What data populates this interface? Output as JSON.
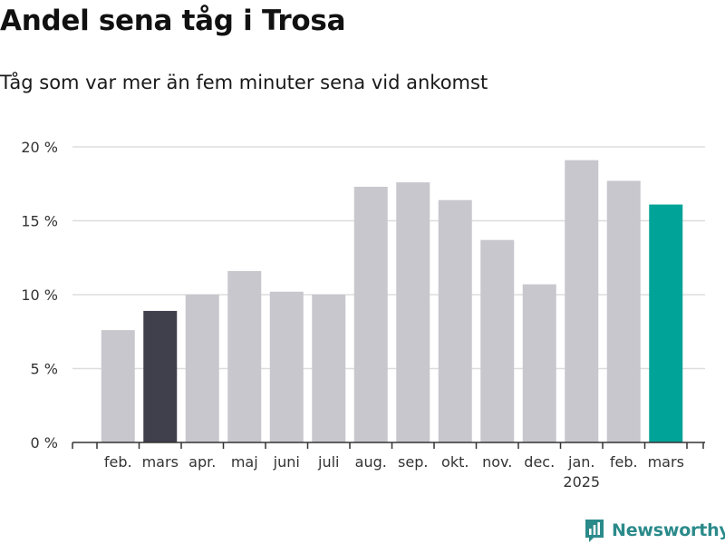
{
  "header": {
    "title": "Andel sena tåg i Trosa",
    "subtitle": "Tåg som var mer än fem minuter sena vid ankomst"
  },
  "brand": {
    "name": "Newsworthy",
    "icon": "newsworthy-logo-icon"
  },
  "colors": {
    "default_bar": "#c8c7cd",
    "highlight_previous": "#403f4c",
    "highlight_current": "#00a398",
    "grid": "#dddddd",
    "axis": "#333333",
    "brand": "#2b8a8a"
  },
  "chart_data": {
    "type": "bar",
    "categories": [
      "feb.",
      "mars",
      "apr.",
      "maj",
      "juni",
      "juli",
      "aug.",
      "sep.",
      "okt.",
      "nov.",
      "dec.",
      "jan.",
      "feb.",
      "mars"
    ],
    "year_labels": [
      "",
      "",
      "",
      "",
      "",
      "",
      "",
      "",
      "",
      "",
      "",
      "2025",
      "",
      ""
    ],
    "values": [
      7.6,
      8.9,
      10.0,
      11.6,
      10.2,
      10.0,
      17.3,
      17.6,
      16.4,
      13.7,
      10.7,
      19.1,
      17.7,
      16.1
    ],
    "bar_highlight": [
      "default",
      "previous",
      "default",
      "default",
      "default",
      "default",
      "default",
      "default",
      "default",
      "default",
      "default",
      "default",
      "default",
      "current"
    ],
    "y_ticks": [
      0,
      5,
      10,
      15,
      20
    ],
    "y_tick_labels": [
      "0 %",
      "5 %",
      "10 %",
      "15 %",
      "20 %"
    ],
    "ylim": [
      0,
      20
    ],
    "unit": "%",
    "grid": true,
    "title": "Andel sena tåg i Trosa",
    "subtitle": "Tåg som var mer än fem minuter sena vid ankomst",
    "xlabel": "",
    "ylabel": ""
  }
}
